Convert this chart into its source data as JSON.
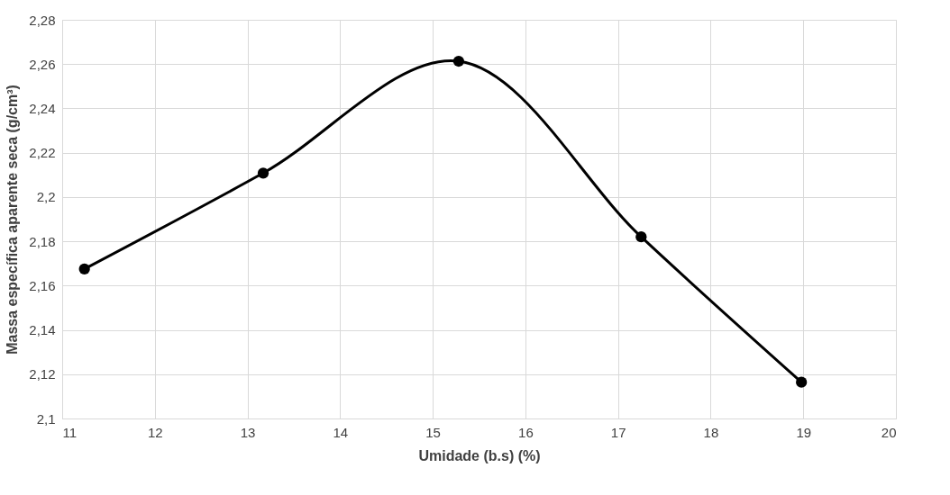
{
  "chart_data": {
    "type": "line",
    "xlabel": "Umidade (b.s) (%)",
    "ylabel": "Massa específica aparente seca (g/cm³)",
    "x": [
      11.24,
      13.17,
      15.28,
      17.25,
      18.98
    ],
    "series": [
      {
        "color": "#000000",
        "values": [
          2.1675,
          2.2108,
          2.2613,
          2.182,
          2.1164
        ]
      }
    ],
    "xlim": [
      11,
      20
    ],
    "xticks": [
      11,
      12,
      13,
      14,
      15,
      16,
      17,
      18,
      19,
      20
    ],
    "ylim": [
      2.1,
      2.28
    ],
    "yticks": [
      {
        "value": 2.1,
        "label": "2,1"
      },
      {
        "value": 2.12,
        "label": "2,12"
      },
      {
        "value": 2.14,
        "label": "2,14"
      },
      {
        "value": 2.16,
        "label": "2,16"
      },
      {
        "value": 2.18,
        "label": "2,18"
      },
      {
        "value": 2.2,
        "label": "2,2"
      },
      {
        "value": 2.22,
        "label": "2,22"
      },
      {
        "value": 2.24,
        "label": "2,24"
      },
      {
        "value": 2.26,
        "label": "2,26"
      },
      {
        "value": 2.28,
        "label": "2,28"
      }
    ],
    "grid": true,
    "marker": "circle",
    "line_style": "solid"
  }
}
